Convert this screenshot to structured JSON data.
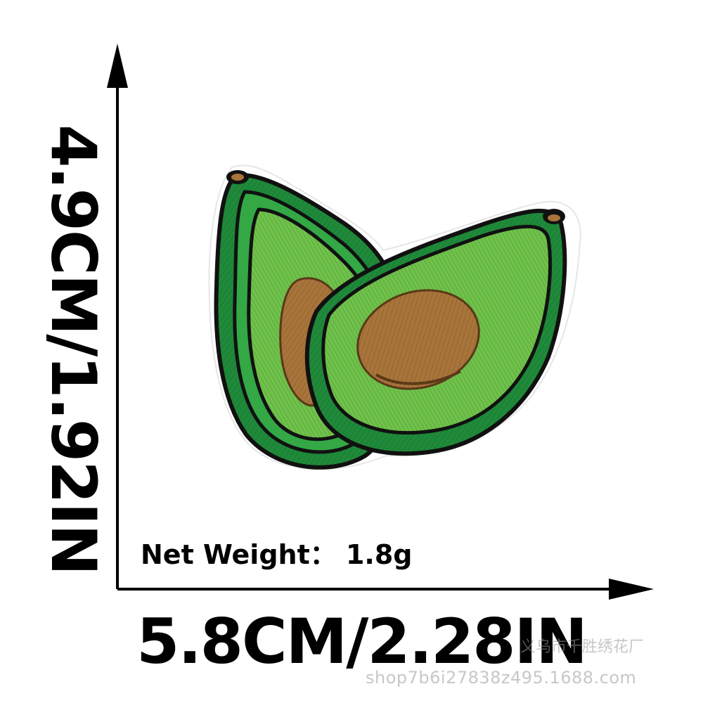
{
  "dimensions": {
    "height_label": "4.9CM/1.92IN",
    "width_label": "5.8CM/2.28IN"
  },
  "product": {
    "net_weight_label": "Net Weight：",
    "net_weight_value": "1.8g",
    "item": "avocado-embroidered-patch"
  },
  "watermark": {
    "shop_name": "义乌市千胜绣花厂",
    "url": "shop7b6i27838z495.1688.com"
  },
  "colors": {
    "outline": "#111111",
    "dark_green": "#1f8a3a",
    "mid_green": "#33a845",
    "light_green": "#6fc24a",
    "pit_brown": "#a8743a",
    "edge_white": "#ffffff"
  }
}
